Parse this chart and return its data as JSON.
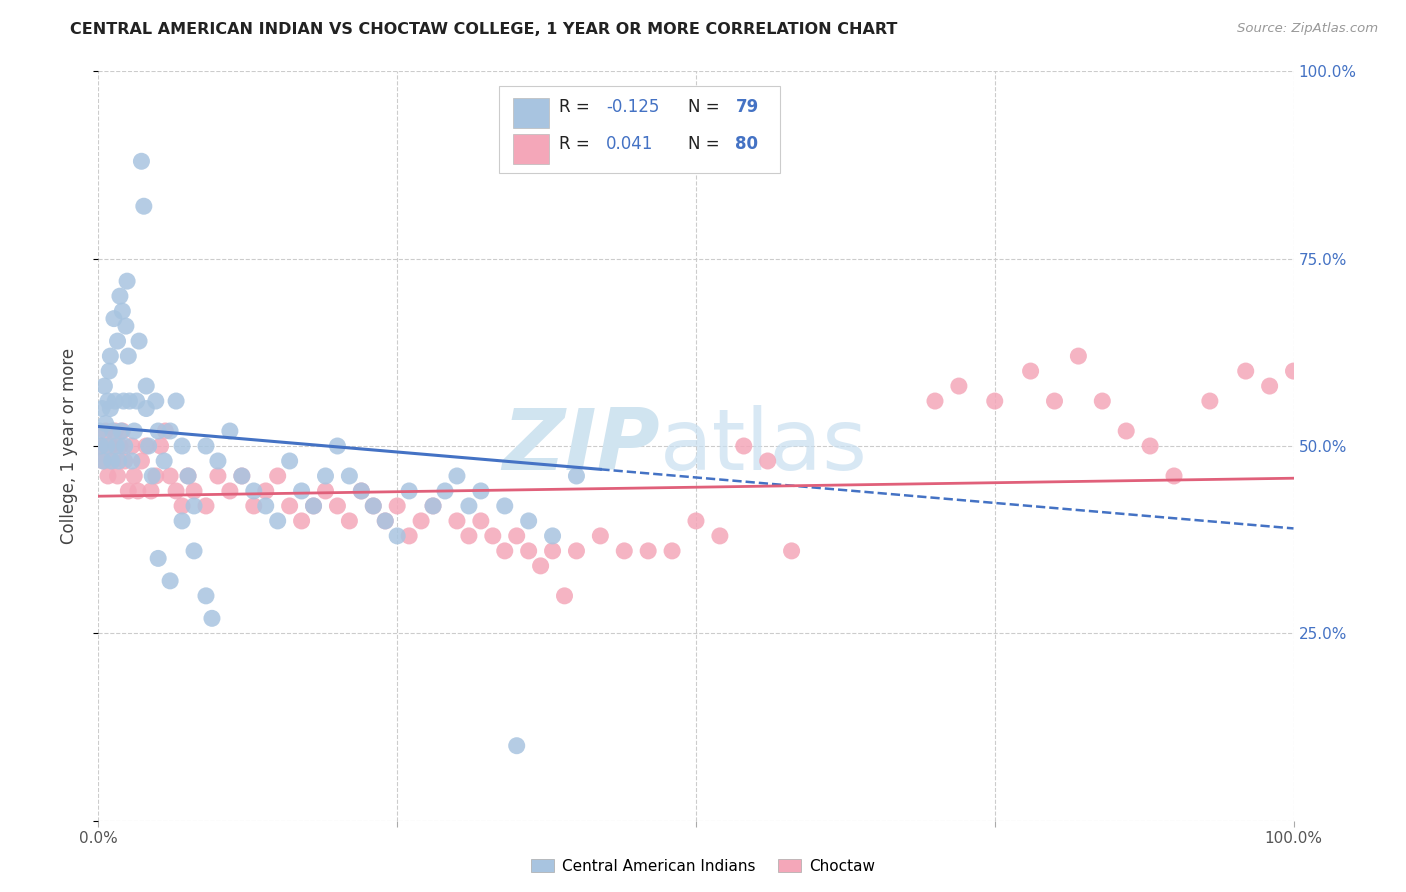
{
  "title": "CENTRAL AMERICAN INDIAN VS CHOCTAW COLLEGE, 1 YEAR OR MORE CORRELATION CHART",
  "source": "Source: ZipAtlas.com",
  "ylabel": "College, 1 year or more",
  "xlim": [
    0.0,
    1.0
  ],
  "ylim": [
    0.0,
    1.0
  ],
  "blue_R": -0.125,
  "blue_N": 79,
  "pink_R": 0.041,
  "pink_N": 80,
  "blue_color": "#a8c4e0",
  "pink_color": "#f4a7b9",
  "blue_line_color": "#4472c4",
  "pink_line_color": "#e0607a",
  "watermark_zip": "ZIP",
  "watermark_atlas": "atlas",
  "legend_label_blue": "Central American Indians",
  "legend_label_pink": "Choctaw",
  "blue_x": [
    0.001,
    0.002,
    0.003,
    0.004,
    0.005,
    0.006,
    0.007,
    0.008,
    0.009,
    0.01,
    0.01,
    0.011,
    0.012,
    0.013,
    0.014,
    0.015,
    0.016,
    0.017,
    0.018,
    0.019,
    0.02,
    0.021,
    0.022,
    0.023,
    0.024,
    0.025,
    0.026,
    0.028,
    0.03,
    0.032,
    0.034,
    0.036,
    0.038,
    0.04,
    0.04,
    0.042,
    0.045,
    0.048,
    0.05,
    0.055,
    0.06,
    0.065,
    0.07,
    0.075,
    0.08,
    0.09,
    0.1,
    0.11,
    0.12,
    0.13,
    0.14,
    0.15,
    0.16,
    0.17,
    0.18,
    0.19,
    0.2,
    0.21,
    0.22,
    0.23,
    0.24,
    0.25,
    0.26,
    0.28,
    0.3,
    0.32,
    0.34,
    0.36,
    0.38,
    0.4,
    0.05,
    0.06,
    0.07,
    0.08,
    0.09,
    0.095,
    0.29,
    0.31,
    0.35
  ],
  "blue_y": [
    0.52,
    0.5,
    0.55,
    0.48,
    0.58,
    0.53,
    0.5,
    0.56,
    0.6,
    0.55,
    0.62,
    0.48,
    0.52,
    0.67,
    0.56,
    0.5,
    0.64,
    0.48,
    0.7,
    0.52,
    0.68,
    0.56,
    0.5,
    0.66,
    0.72,
    0.62,
    0.56,
    0.48,
    0.52,
    0.56,
    0.64,
    0.88,
    0.82,
    0.55,
    0.58,
    0.5,
    0.46,
    0.56,
    0.52,
    0.48,
    0.52,
    0.56,
    0.5,
    0.46,
    0.42,
    0.5,
    0.48,
    0.52,
    0.46,
    0.44,
    0.42,
    0.4,
    0.48,
    0.44,
    0.42,
    0.46,
    0.5,
    0.46,
    0.44,
    0.42,
    0.4,
    0.38,
    0.44,
    0.42,
    0.46,
    0.44,
    0.42,
    0.4,
    0.38,
    0.46,
    0.35,
    0.32,
    0.4,
    0.36,
    0.3,
    0.27,
    0.44,
    0.42,
    0.1
  ],
  "pink_x": [
    0.002,
    0.004,
    0.006,
    0.008,
    0.01,
    0.012,
    0.014,
    0.016,
    0.018,
    0.02,
    0.022,
    0.025,
    0.028,
    0.03,
    0.033,
    0.036,
    0.04,
    0.044,
    0.048,
    0.052,
    0.056,
    0.06,
    0.065,
    0.07,
    0.075,
    0.08,
    0.09,
    0.1,
    0.11,
    0.12,
    0.13,
    0.14,
    0.15,
    0.16,
    0.17,
    0.18,
    0.19,
    0.2,
    0.21,
    0.22,
    0.23,
    0.24,
    0.25,
    0.26,
    0.27,
    0.28,
    0.3,
    0.31,
    0.32,
    0.33,
    0.34,
    0.35,
    0.36,
    0.37,
    0.38,
    0.39,
    0.4,
    0.42,
    0.44,
    0.46,
    0.48,
    0.5,
    0.52,
    0.54,
    0.56,
    0.58,
    0.7,
    0.72,
    0.75,
    0.78,
    0.8,
    0.82,
    0.84,
    0.86,
    0.88,
    0.9,
    0.93,
    0.96,
    0.98,
    1.0
  ],
  "pink_y": [
    0.5,
    0.48,
    0.52,
    0.46,
    0.5,
    0.48,
    0.52,
    0.46,
    0.5,
    0.52,
    0.48,
    0.44,
    0.5,
    0.46,
    0.44,
    0.48,
    0.5,
    0.44,
    0.46,
    0.5,
    0.52,
    0.46,
    0.44,
    0.42,
    0.46,
    0.44,
    0.42,
    0.46,
    0.44,
    0.46,
    0.42,
    0.44,
    0.46,
    0.42,
    0.4,
    0.42,
    0.44,
    0.42,
    0.4,
    0.44,
    0.42,
    0.4,
    0.42,
    0.38,
    0.4,
    0.42,
    0.4,
    0.38,
    0.4,
    0.38,
    0.36,
    0.38,
    0.36,
    0.34,
    0.36,
    0.3,
    0.36,
    0.38,
    0.36,
    0.36,
    0.36,
    0.4,
    0.38,
    0.5,
    0.48,
    0.36,
    0.56,
    0.58,
    0.56,
    0.6,
    0.56,
    0.62,
    0.56,
    0.52,
    0.5,
    0.46,
    0.56,
    0.6,
    0.58,
    0.6
  ],
  "blue_line_start_x": 0.0,
  "blue_line_solid_end_x": 0.42,
  "blue_line_dash_end_x": 1.0,
  "blue_line_start_y": 0.526,
  "blue_line_end_y": 0.39,
  "pink_line_start_y": 0.433,
  "pink_line_end_y": 0.457
}
